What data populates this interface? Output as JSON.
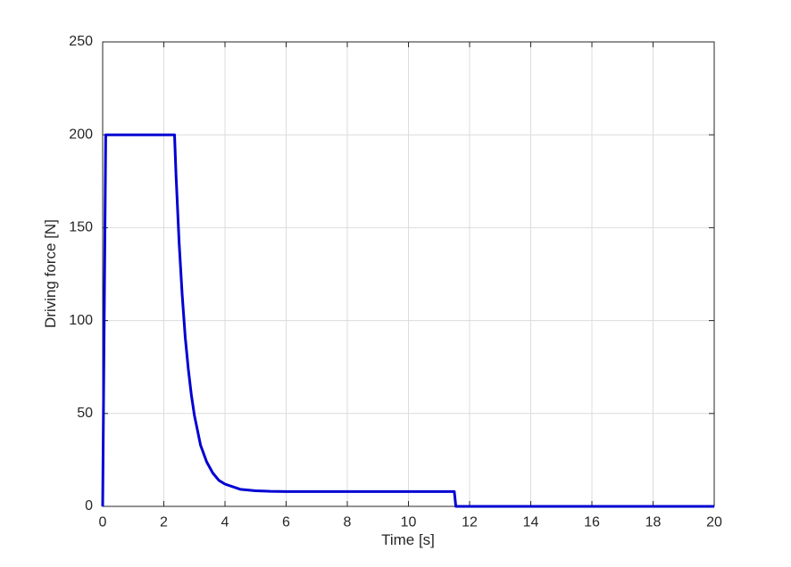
{
  "figure": {
    "background_color": "#ffffff"
  },
  "chart_data": {
    "type": "line",
    "title": "",
    "xlabel": "Time [s]",
    "ylabel": "Driving force [N]",
    "xlim": [
      0,
      20
    ],
    "ylim": [
      0,
      250
    ],
    "x_ticks": [
      0,
      2,
      4,
      6,
      8,
      10,
      12,
      14,
      16,
      18,
      20
    ],
    "y_ticks": [
      0,
      50,
      100,
      150,
      200,
      250
    ],
    "grid": true,
    "legend": null,
    "series": [
      {
        "name": "driving-force",
        "color": "#0000d2",
        "line_width": 3,
        "points": [
          [
            0,
            0
          ],
          [
            0.1,
            200
          ],
          [
            2.35,
            200
          ],
          [
            2.4,
            178
          ],
          [
            2.5,
            142
          ],
          [
            2.6,
            114
          ],
          [
            2.7,
            91
          ],
          [
            2.8,
            74
          ],
          [
            2.9,
            60
          ],
          [
            3.0,
            49
          ],
          [
            3.2,
            33
          ],
          [
            3.4,
            24
          ],
          [
            3.6,
            18
          ],
          [
            3.8,
            14
          ],
          [
            4.0,
            12
          ],
          [
            4.5,
            9.2
          ],
          [
            5.0,
            8.4
          ],
          [
            5.5,
            8.1
          ],
          [
            6.0,
            8
          ],
          [
            7.0,
            8
          ],
          [
            8.0,
            8
          ],
          [
            9.0,
            8
          ],
          [
            10.0,
            8
          ],
          [
            11.0,
            8
          ],
          [
            11.5,
            8
          ],
          [
            11.55,
            0
          ],
          [
            20,
            0
          ]
        ]
      }
    ]
  },
  "style": {
    "grid_color": "#dcdcdc",
    "axis_color": "#262626",
    "tick_label_color": "#262626"
  }
}
